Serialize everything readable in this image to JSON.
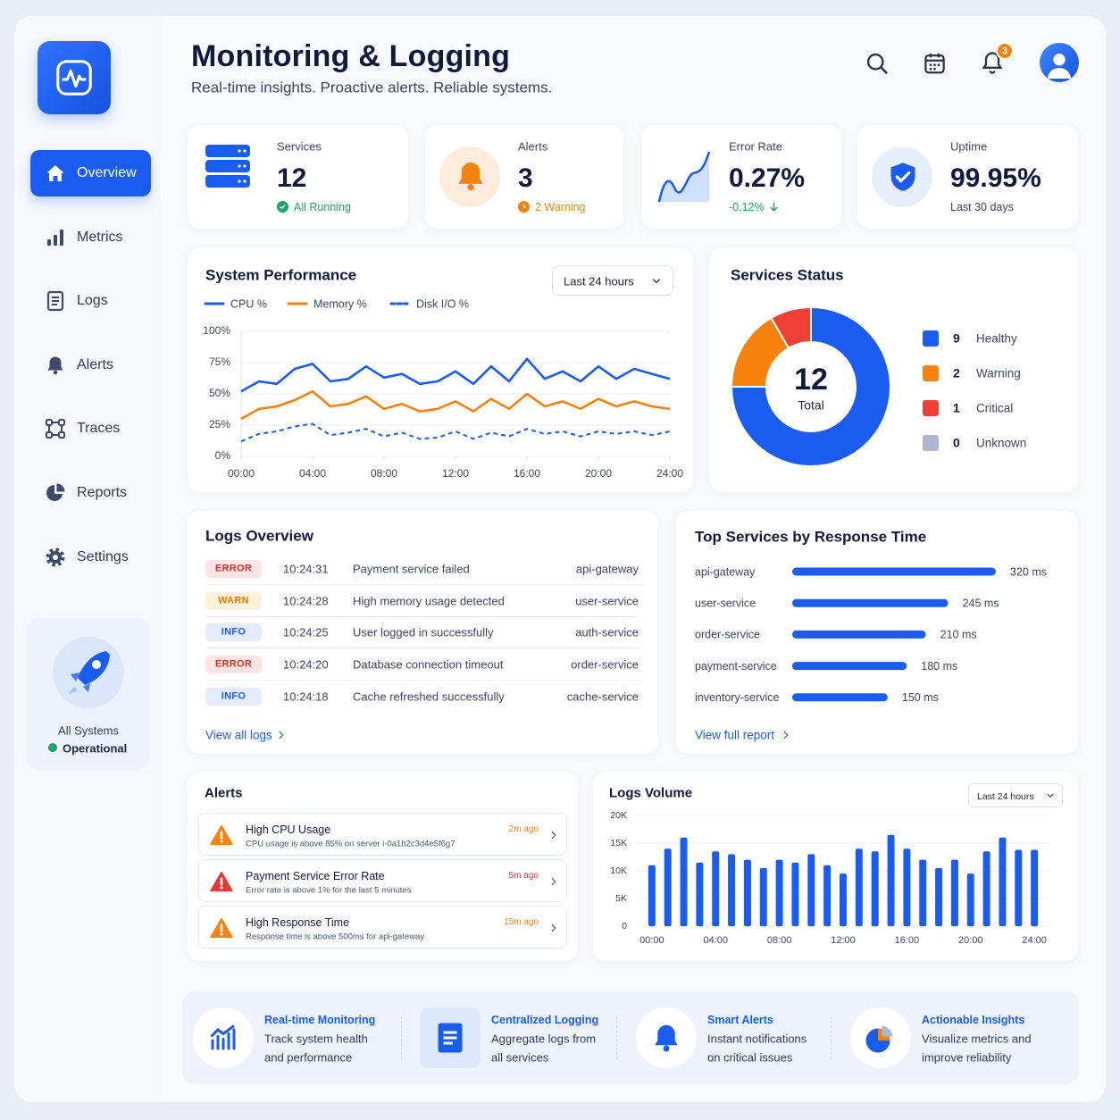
{
  "sidebar": {
    "nav": [
      "Overview",
      "Metrics",
      "Logs",
      "Alerts",
      "Traces",
      "Reports",
      "Settings"
    ],
    "status": [
      "All Systems",
      "Operational"
    ]
  },
  "header": {
    "title": "Monitoring & Logging",
    "subtitle": "Real-time insights. Proactive alerts. Reliable systems.",
    "notification_count": 3
  },
  "kpis": [
    {
      "label": "Services",
      "value": "12",
      "note": "All Running"
    },
    {
      "label": "Alerts",
      "value": "3",
      "note": "2 Warning"
    },
    {
      "label": "Error Rate",
      "value": "0.27%",
      "note": "-0.12%"
    },
    {
      "label": "Uptime",
      "value": "99.95%",
      "note": "Last 30 days"
    }
  ],
  "system_performance": {
    "type": "line",
    "title": "System Performance",
    "range": "Last 24 hours",
    "x": [
      0,
      1,
      2,
      3,
      4,
      5,
      6,
      7,
      8,
      9,
      10,
      11,
      12,
      13,
      14,
      15,
      16,
      17,
      18,
      19,
      20,
      21,
      22,
      23,
      24
    ],
    "xlim": [
      0,
      24
    ],
    "xticks": [
      {
        "value": 0,
        "label": "00:00"
      },
      {
        "value": 4,
        "label": "04:00"
      },
      {
        "value": 8,
        "label": "08:00"
      },
      {
        "value": 12,
        "label": "12:00"
      },
      {
        "value": 16,
        "label": "16:00"
      },
      {
        "value": 20,
        "label": "20:00"
      },
      {
        "value": 24,
        "label": "24:00"
      }
    ],
    "ylim": [
      0,
      100
    ],
    "yticks": [
      {
        "value": 0,
        "label": "0%"
      },
      {
        "value": 25,
        "label": "25%"
      },
      {
        "value": 50,
        "label": "50%"
      },
      {
        "value": 75,
        "label": "75%"
      },
      {
        "value": 100,
        "label": "100%"
      }
    ],
    "grid": true,
    "series": [
      {
        "name": "CPU %",
        "color": "#1a5cf0",
        "style": "solid",
        "values": [
          52,
          60,
          58,
          70,
          74,
          60,
          62,
          72,
          63,
          66,
          58,
          60,
          68,
          58,
          72,
          60,
          78,
          62,
          68,
          60,
          72,
          62,
          70,
          66,
          62
        ]
      },
      {
        "name": "Memory %",
        "color": "#f5820d",
        "style": "solid",
        "values": [
          30,
          38,
          40,
          45,
          52,
          40,
          42,
          48,
          38,
          42,
          36,
          38,
          44,
          36,
          46,
          38,
          50,
          40,
          44,
          38,
          46,
          40,
          44,
          40,
          38
        ]
      },
      {
        "name": "Disk I/O %",
        "color": "#1a5cf0",
        "style": "dashed",
        "values": [
          12,
          18,
          20,
          24,
          26,
          17,
          19,
          22,
          16,
          19,
          14,
          15,
          20,
          14,
          19,
          16,
          22,
          18,
          20,
          16,
          20,
          18,
          20,
          17,
          20
        ]
      }
    ]
  },
  "services_status": {
    "type": "donut",
    "title": "Services Status",
    "total": 12,
    "total_label": "Total",
    "categories": [
      "Healthy",
      "Warning",
      "Critical",
      "Unknown"
    ],
    "values": [
      9,
      2,
      1,
      0
    ],
    "colors": [
      "#1a5cf0",
      "#f5820d",
      "#ef4035",
      "#aab6d3"
    ]
  },
  "logs_overview": {
    "title": "Logs Overview",
    "rows": [
      [
        "ERROR",
        "10:24:31",
        "Payment service failed",
        "api-gateway"
      ],
      [
        "WARN",
        "10:24:28",
        "High memory usage detected",
        "user-service"
      ],
      [
        "INFO",
        "10:24:25",
        "User logged in successfully",
        "auth-service"
      ],
      [
        "ERROR",
        "10:24:20",
        "Database connection timeout",
        "order-service"
      ],
      [
        "INFO",
        "10:24:18",
        "Cache refreshed successfully",
        "cache-service"
      ]
    ],
    "link": "View all logs"
  },
  "top_services": {
    "type": "bar",
    "orientation": "horizontal",
    "title": "Top Services by Response Time",
    "categories": [
      "api-gateway",
      "user-service",
      "order-service",
      "payment-service",
      "inventory-service"
    ],
    "values": [
      320,
      245,
      210,
      180,
      150
    ],
    "value_labels": [
      "320 ms",
      "245 ms",
      "210 ms",
      "180 ms",
      "150 ms"
    ],
    "color": "#1a5cf0",
    "link": "View full report"
  },
  "alerts": {
    "title": "Alerts",
    "items": [
      {
        "title": "High CPU Usage",
        "description": "CPU usage is above 85% on server i-0a1b2c3d4e5f6g7",
        "time": "2m ago",
        "severity": "warning"
      },
      {
        "title": "Payment Service Error Rate",
        "description": "Error rate is above 1% for the last 5 minutes",
        "time": "5m ago",
        "severity": "critical"
      },
      {
        "title": "High Response Time",
        "description": "Response time is above 500ms for api-gateway",
        "time": "15m ago",
        "severity": "warning"
      }
    ]
  },
  "logs_volume": {
    "type": "bar",
    "title": "Logs Volume",
    "range": "Last 24 hours",
    "x": [
      0,
      1,
      2,
      3,
      4,
      5,
      6,
      7,
      8,
      9,
      10,
      11,
      12,
      13,
      14,
      15,
      16,
      17,
      18,
      19,
      20,
      21,
      22,
      23,
      24
    ],
    "xlim": [
      -1,
      25
    ],
    "xticks": [
      {
        "value": 0,
        "label": "00:00"
      },
      {
        "value": 4,
        "label": "04:00"
      },
      {
        "value": 8,
        "label": "08:00"
      },
      {
        "value": 12,
        "label": "12:00"
      },
      {
        "value": 16,
        "label": "16:00"
      },
      {
        "value": 20,
        "label": "20:00"
      },
      {
        "value": 24,
        "label": "24:00"
      }
    ],
    "values": [
      11000,
      14000,
      16000,
      11500,
      13500,
      13000,
      12000,
      10500,
      12000,
      11500,
      13000,
      11000,
      9500,
      14000,
      13500,
      16500,
      14000,
      12000,
      10500,
      12000,
      9500,
      13500,
      16000,
      13800,
      13800
    ],
    "ylim": [
      0,
      20000
    ],
    "yticks": [
      0,
      {
        "value": 5000,
        "label": "5K"
      },
      {
        "value": 10000,
        "label": "10K"
      },
      {
        "value": 15000,
        "label": "15K"
      },
      {
        "value": 20000,
        "label": "20K"
      }
    ],
    "color": "#1a5cf0"
  },
  "features": [
    {
      "title": "Real-time Monitoring",
      "lines": [
        "Track system health",
        "and performance"
      ]
    },
    {
      "title": "Centralized Logging",
      "lines": [
        "Aggregate logs from",
        "all services"
      ]
    },
    {
      "title": "Smart Alerts",
      "lines": [
        "Instant notifications",
        "on critical issues"
      ]
    },
    {
      "title": "Actionable Insights",
      "lines": [
        "Visualize metrics and",
        "improve reliability"
      ]
    }
  ]
}
